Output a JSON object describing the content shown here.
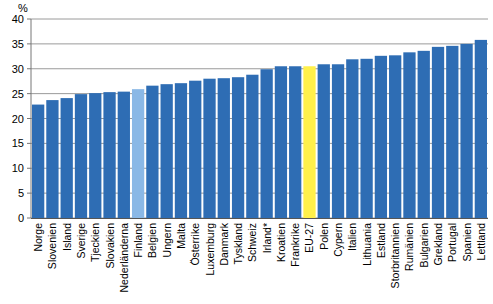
{
  "chart_data": {
    "type": "bar",
    "y_label": "%",
    "categories": [
      "Norge",
      "Slovenien",
      "Island",
      "Sverige",
      "Tjeckien",
      "Slovakien",
      "Nederländerna",
      "Finland",
      "Belgien",
      "Ungern",
      "Malta",
      "Österrike",
      "Luxemburg",
      "Danmark",
      "Tyskland",
      "Schweiz",
      "Irland*",
      "Kroatien",
      "Frankrike",
      "EU-27",
      "Polen",
      "Cypern",
      "Italien",
      "Lithuania",
      "Estland",
      "Storbritannien",
      "Rumänien",
      "Bulgarien",
      "Grekland",
      "Portugal",
      "Spanien",
      "Lettland"
    ],
    "values": [
      22.8,
      23.7,
      24.1,
      24.9,
      25.1,
      25.3,
      25.4,
      25.9,
      26.6,
      26.9,
      27.1,
      27.6,
      28.0,
      28.1,
      28.3,
      28.8,
      29.9,
      30.5,
      30.5,
      30.5,
      30.9,
      30.9,
      31.9,
      32.0,
      32.6,
      32.7,
      33.3,
      33.6,
      34.4,
      34.6,
      35.0,
      35.8
    ],
    "colors": [
      "#2e6db4",
      "#2e6db4",
      "#2e6db4",
      "#2e6db4",
      "#2e6db4",
      "#2e6db4",
      "#2e6db4",
      "#8ab8e6",
      "#2e6db4",
      "#2e6db4",
      "#2e6db4",
      "#2e6db4",
      "#2e6db4",
      "#2e6db4",
      "#2e6db4",
      "#2e6db4",
      "#2e6db4",
      "#2e6db4",
      "#2e6db4",
      "#fff04a",
      "#2e6db4",
      "#2e6db4",
      "#2e6db4",
      "#2e6db4",
      "#2e6db4",
      "#2e6db4",
      "#2e6db4",
      "#2e6db4",
      "#2e6db4",
      "#2e6db4",
      "#2e6db4",
      "#2e6db4"
    ],
    "ylim": [
      0,
      40
    ],
    "yticks": [
      0,
      5,
      10,
      15,
      20,
      25,
      30,
      35,
      40
    ],
    "grid": true
  }
}
